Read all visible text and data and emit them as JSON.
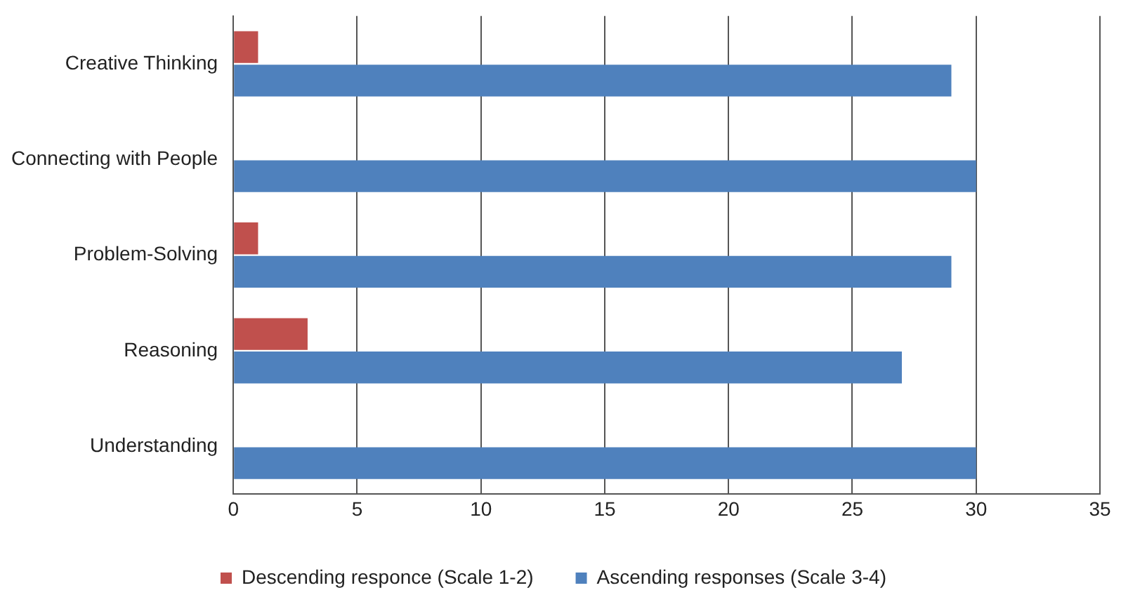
{
  "chart_data": {
    "type": "bar",
    "orientation": "horizontal",
    "categories": [
      "Creative Thinking",
      "Connecting with People",
      "Problem-Solving",
      "Reasoning",
      "Understanding"
    ],
    "series": [
      {
        "name": "Descending responce (Scale 1-2)",
        "color": "#c0504d",
        "values": [
          1,
          0,
          1,
          3,
          0
        ]
      },
      {
        "name": "Ascending responses (Scale 3-4)",
        "color": "#4f81bd",
        "values": [
          29,
          30,
          29,
          27,
          30
        ]
      }
    ],
    "xlim": [
      0,
      35
    ],
    "xticks": [
      0,
      5,
      10,
      15,
      20,
      25,
      30,
      35
    ],
    "grid": "x",
    "legend": "bottom"
  }
}
